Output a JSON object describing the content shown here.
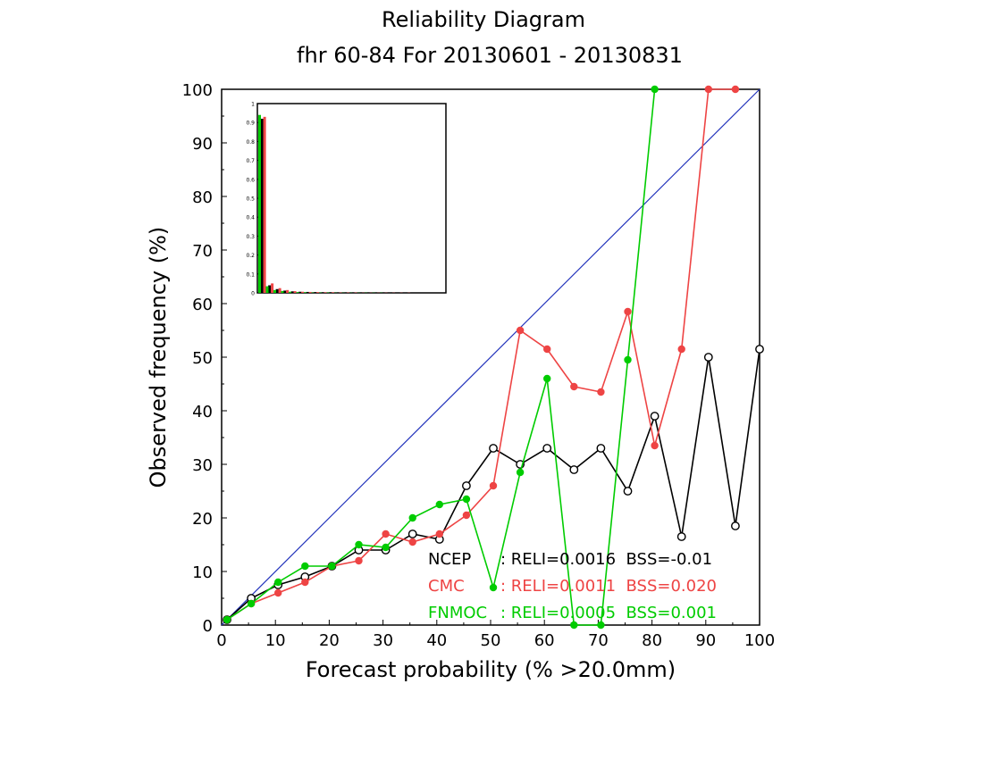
{
  "chart_data": {
    "type": "line",
    "title": "Reliability Diagram",
    "subtitle": "fhr 60-84 For 20130601 - 20130831",
    "xlabel": "Forecast probability (% >20.0mm)",
    "ylabel": "Observed frequency (%)",
    "xlim": [
      0,
      100
    ],
    "ylim": [
      0,
      100
    ],
    "xticks": [
      "0",
      "10",
      "20",
      "30",
      "40",
      "50",
      "60",
      "70",
      "80",
      "90",
      "100"
    ],
    "yticks": [
      "0",
      "10",
      "20",
      "30",
      "40",
      "50",
      "60",
      "70",
      "80",
      "90",
      "100"
    ],
    "grid": false,
    "diagonal_color": "#2233bb",
    "series": [
      {
        "name": "NCEP",
        "color": "#000000",
        "marker": "open-circle",
        "stats": ": RELI=0.0016  BSS=-0.01",
        "x": [
          1,
          5.5,
          10.5,
          15.5,
          20.5,
          25.5,
          30.5,
          35.5,
          40.5,
          45.5,
          50.5,
          55.5,
          60.5,
          65.5,
          70.5,
          75.5,
          80.5,
          85.5,
          90.5,
          95.5,
          100
        ],
        "y": [
          1,
          5,
          7.5,
          9,
          11,
          14,
          14,
          17,
          16,
          26,
          33,
          30,
          33,
          29,
          33,
          25,
          39,
          16.5,
          50,
          18.5,
          51.5
        ]
      },
      {
        "name": "CMC",
        "color": "#ee4444",
        "marker": "filled-circle",
        "stats": ": RELI=0.0011  BSS=0.020",
        "x": [
          1,
          5.5,
          10.5,
          15.5,
          20.5,
          25.5,
          30.5,
          35.5,
          40.5,
          45.5,
          50.5,
          55.5,
          60.5,
          65.5,
          70.5,
          75.5,
          80.5,
          85.5,
          90.5,
          95.5
        ],
        "y": [
          1,
          4,
          6,
          8,
          11,
          12,
          17,
          15.5,
          17,
          20.5,
          26,
          55,
          51.5,
          44.5,
          43.5,
          58.5,
          33.5,
          51.5,
          100,
          100
        ]
      },
      {
        "name": "FNMOC",
        "color": "#00cc00",
        "marker": "filled-circle",
        "stats": ": RELI=0.0005  BSS=0.001",
        "x": [
          1,
          5.5,
          10.5,
          15.5,
          20.5,
          25.5,
          30.5,
          35.5,
          40.5,
          45.5,
          50.5,
          55.5,
          60.5,
          65.5,
          70.5,
          75.5,
          80.5
        ],
        "y": [
          1,
          4,
          8,
          11,
          11,
          15,
          14.5,
          20,
          22.5,
          23.5,
          7,
          28.5,
          46,
          0,
          0,
          49.5,
          100
        ]
      }
    ],
    "inset": {
      "type": "bar",
      "ylim": [
        0,
        1
      ],
      "yticks": [
        "0",
        "0.1",
        "0.2",
        "0.3",
        "0.4",
        "0.5",
        "0.6",
        "0.7",
        "0.8",
        "0.9",
        "1"
      ],
      "bins": 20,
      "series_values": {
        "NCEP": [
          0.92,
          0.04,
          0.02,
          0.012,
          0.008,
          0.006,
          0.005,
          0.004,
          0.003,
          0.003,
          0.002,
          0.002,
          0.002,
          0.002,
          0.001,
          0.001,
          0.001,
          0.001,
          0.001,
          0.001
        ],
        "CMC": [
          0.93,
          0.05,
          0.025,
          0.015,
          0.009,
          0.006,
          0.005,
          0.004,
          0.003,
          0.003,
          0.002,
          0.002,
          0.002,
          0.001,
          0.001,
          0.001,
          0.001,
          0.001,
          0.001,
          0.001
        ],
        "FNMOC": [
          0.94,
          0.035,
          0.015,
          0.01,
          0.006,
          0.004,
          0.003,
          0.002,
          0.002,
          0.002,
          0.001,
          0.001,
          0.001,
          0.001,
          0.001,
          0.001,
          0.001,
          0.0,
          0.0,
          0.0
        ]
      }
    }
  }
}
